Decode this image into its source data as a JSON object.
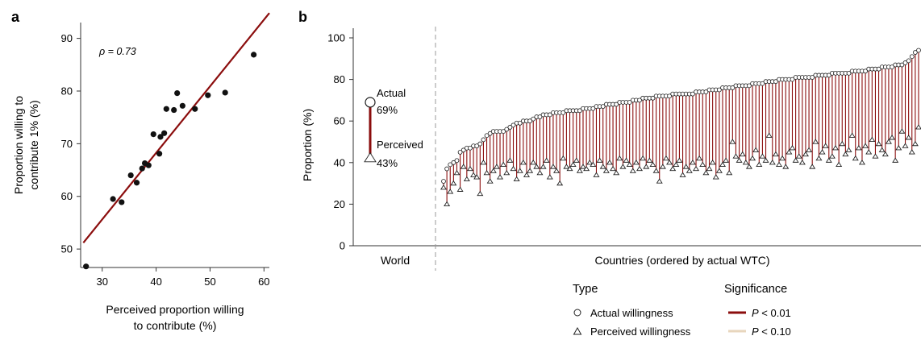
{
  "chart_data": [
    {
      "panel_label": "a",
      "type": "scatter",
      "xlabel": [
        "Perceived proportion willing",
        "to contribute (%)"
      ],
      "ylabel": [
        "Proportion willing to",
        "contribute 1% (%)"
      ],
      "xlim": [
        26,
        61
      ],
      "ylim": [
        46.5,
        93
      ],
      "xticks": [
        30,
        40,
        50,
        60
      ],
      "yticks": [
        50,
        60,
        70,
        80,
        90
      ],
      "annotation": "ρ = 0.73",
      "fit_line": {
        "color": "#8b0d0d",
        "x": [
          26.5,
          61
        ],
        "y": [
          51.2,
          94.8
        ]
      },
      "points": [
        {
          "x": 27.0,
          "y": 46.7
        },
        {
          "x": 32.0,
          "y": 59.5
        },
        {
          "x": 33.6,
          "y": 58.9
        },
        {
          "x": 35.3,
          "y": 64.0
        },
        {
          "x": 36.4,
          "y": 62.6
        },
        {
          "x": 37.4,
          "y": 65.3
        },
        {
          "x": 37.9,
          "y": 66.3
        },
        {
          "x": 38.6,
          "y": 65.9
        },
        {
          "x": 39.5,
          "y": 71.8
        },
        {
          "x": 40.6,
          "y": 68.1
        },
        {
          "x": 40.8,
          "y": 71.3
        },
        {
          "x": 41.5,
          "y": 72.0
        },
        {
          "x": 41.9,
          "y": 76.6
        },
        {
          "x": 43.3,
          "y": 76.4
        },
        {
          "x": 43.9,
          "y": 79.6
        },
        {
          "x": 44.9,
          "y": 77.2
        },
        {
          "x": 47.2,
          "y": 76.6
        },
        {
          "x": 49.6,
          "y": 79.2
        },
        {
          "x": 52.8,
          "y": 79.7
        },
        {
          "x": 58.1,
          "y": 86.9
        }
      ]
    },
    {
      "panel_label": "b",
      "type": "dumbbell",
      "ylabel": "Proportion (%)",
      "ylim": [
        0,
        100
      ],
      "yticks": [
        0,
        20,
        40,
        60,
        80,
        100
      ],
      "world": {
        "category": "World",
        "actual": 69,
        "perceived": 43,
        "actual_label": "Actual",
        "actual_value_label": "69%",
        "perceived_label": "Perceived",
        "perceived_value_label": "43%"
      },
      "countries_axis_label": "Countries (ordered by actual WTC)",
      "countries_actual": [
        31,
        37,
        39,
        40,
        41,
        45,
        46,
        47,
        47,
        48,
        48,
        49,
        51,
        53,
        54,
        55,
        55,
        55,
        55,
        56,
        57,
        58,
        59,
        59,
        60,
        60,
        60,
        61,
        62,
        62,
        63,
        63,
        63,
        64,
        64,
        64,
        64,
        65,
        65,
        65,
        65,
        65,
        66,
        66,
        66,
        66,
        67,
        67,
        67,
        68,
        68,
        68,
        68,
        69,
        69,
        69,
        69,
        70,
        70,
        70,
        71,
        71,
        71,
        71,
        72,
        72,
        72,
        72,
        72,
        73,
        73,
        73,
        73,
        73,
        73,
        73,
        74,
        74,
        74,
        74,
        75,
        75,
        75,
        75,
        76,
        76,
        76,
        76,
        77,
        77,
        77,
        77,
        77,
        78,
        78,
        78,
        78,
        79,
        79,
        79,
        79,
        80,
        80,
        80,
        80,
        80,
        81,
        81,
        81,
        81,
        81,
        81,
        82,
        82,
        82,
        82,
        82,
        83,
        83,
        83,
        83,
        83,
        83,
        84,
        84,
        84,
        84,
        84,
        85,
        85,
        85,
        85,
        86,
        86,
        86,
        86,
        87,
        87,
        87,
        88,
        89,
        91,
        93,
        94
      ],
      "countries_perceived": [
        28,
        20,
        26,
        30,
        35,
        27,
        38,
        32,
        37,
        34,
        33,
        25,
        40,
        35,
        31,
        36,
        38,
        33,
        39,
        35,
        41,
        37,
        32,
        36,
        40,
        34,
        36,
        40,
        38,
        35,
        38,
        41,
        33,
        38,
        36,
        30,
        42,
        38,
        37,
        39,
        41,
        36,
        38,
        37,
        40,
        39,
        34,
        41,
        38,
        36,
        40,
        37,
        35,
        42,
        38,
        41,
        39,
        36,
        40,
        37,
        42,
        38,
        41,
        39,
        36,
        31,
        38,
        42,
        40,
        37,
        39,
        41,
        34,
        38,
        36,
        40,
        37,
        42,
        39,
        35,
        37,
        40,
        33,
        36,
        39,
        41,
        35,
        50,
        43,
        41,
        44,
        40,
        38,
        42,
        46,
        39,
        43,
        41,
        53,
        40,
        44,
        39,
        42,
        38,
        45,
        47,
        41,
        43,
        40,
        44,
        46,
        38,
        50,
        42,
        45,
        48,
        41,
        43,
        47,
        39,
        49,
        44,
        46,
        53,
        42,
        47,
        40,
        48,
        45,
        51,
        43,
        49,
        46,
        44,
        50,
        52,
        41,
        47,
        55,
        48,
        52,
        45,
        49,
        57
      ],
      "legend": {
        "type_title": "Type",
        "type_items": [
          "Actual willingness",
          "Perceived willingness"
        ],
        "sig_title": "Significance",
        "sig_items": [
          {
            "pre": "P",
            "post": " < 0.01",
            "color": "#8b0d0d"
          },
          {
            "pre": "P",
            "post": " < 0.10",
            "color": "#e8d6bd"
          }
        ]
      },
      "colors": {
        "significant": "#8b0d0d",
        "marker_edge": "#222222"
      }
    }
  ]
}
